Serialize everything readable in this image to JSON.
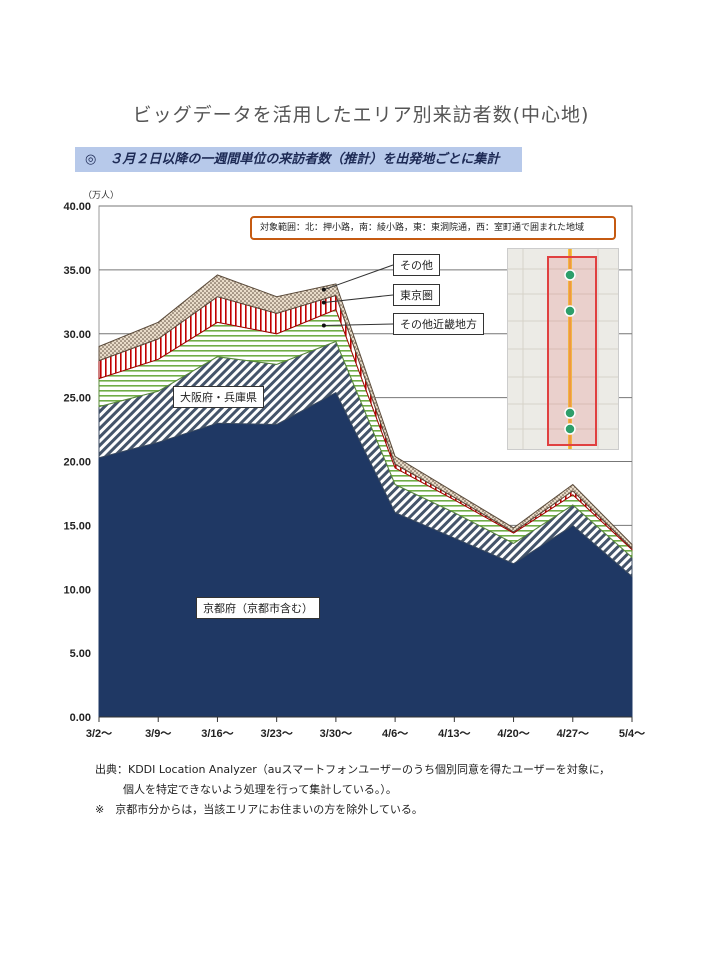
{
  "page_title": "ビッグデータを活用したエリア別来訪者数(中心地)",
  "subtitle": "◎　３月２日以降の一週間単位の来訪者数（推計）を出発地ごとに集計",
  "unit_label": "（万人）",
  "scope_note": "対象範囲：北：押小路，南：綾小路，東：東洞院通，西：室町通で囲まれた地域",
  "footer": {
    "line1": "出典：KDDI Location Analyzer（auスマートフォンユーザーのうち個別同意を得たユーザーを対象に，",
    "line2": "個人を特定できないよう処理を行って集計している。）。",
    "line3": "※　京都市分からは，当該エリアにお住まいの方を除外している。"
  },
  "map_legend": {
    "marker": "green-pin-icon",
    "area": "red-outline-area"
  },
  "colors": {
    "kyoto": "#1f3864",
    "osaka": "#44546a",
    "kinki": "#70ad47",
    "tokyo": "#c00000",
    "other": "#7f6f5f",
    "scope_border": "#c55a11",
    "subtitle_bg": "#b7c9ea"
  },
  "chart_data": {
    "type": "area",
    "stacked": true,
    "categories": [
      "3/2〜",
      "3/9〜",
      "3/16〜",
      "3/23〜",
      "3/30〜",
      "4/6〜",
      "4/13〜",
      "4/20〜",
      "4/27〜",
      "5/4〜"
    ],
    "yticks": [
      "0.00",
      "5.00",
      "10.00",
      "15.00",
      "20.00",
      "25.00",
      "30.00",
      "35.00",
      "40.00"
    ],
    "ylim": [
      0,
      40
    ],
    "grid": true,
    "series": [
      {
        "name": "京都府（京都市含む）",
        "values": [
          20.3,
          21.5,
          23.0,
          22.9,
          25.4,
          16.0,
          14.0,
          12.0,
          15.0,
          11.0
        ]
      },
      {
        "name": "大阪府・兵庫県",
        "values": [
          4.0,
          4.0,
          5.2,
          4.7,
          4.0,
          2.2,
          2.0,
          1.6,
          1.6,
          1.5
        ]
      },
      {
        "name": "その他近畿地方",
        "values": [
          2.2,
          2.5,
          2.7,
          2.4,
          2.5,
          1.3,
          1.0,
          0.8,
          0.8,
          0.6
        ]
      },
      {
        "name": "東京圏",
        "values": [
          1.4,
          1.6,
          2.0,
          1.6,
          1.1,
          0.3,
          0.2,
          0.1,
          0.3,
          0.1
        ]
      },
      {
        "name": "その他",
        "values": [
          1.1,
          1.3,
          1.7,
          1.3,
          0.9,
          0.6,
          0.4,
          0.3,
          0.5,
          0.3
        ]
      }
    ]
  }
}
